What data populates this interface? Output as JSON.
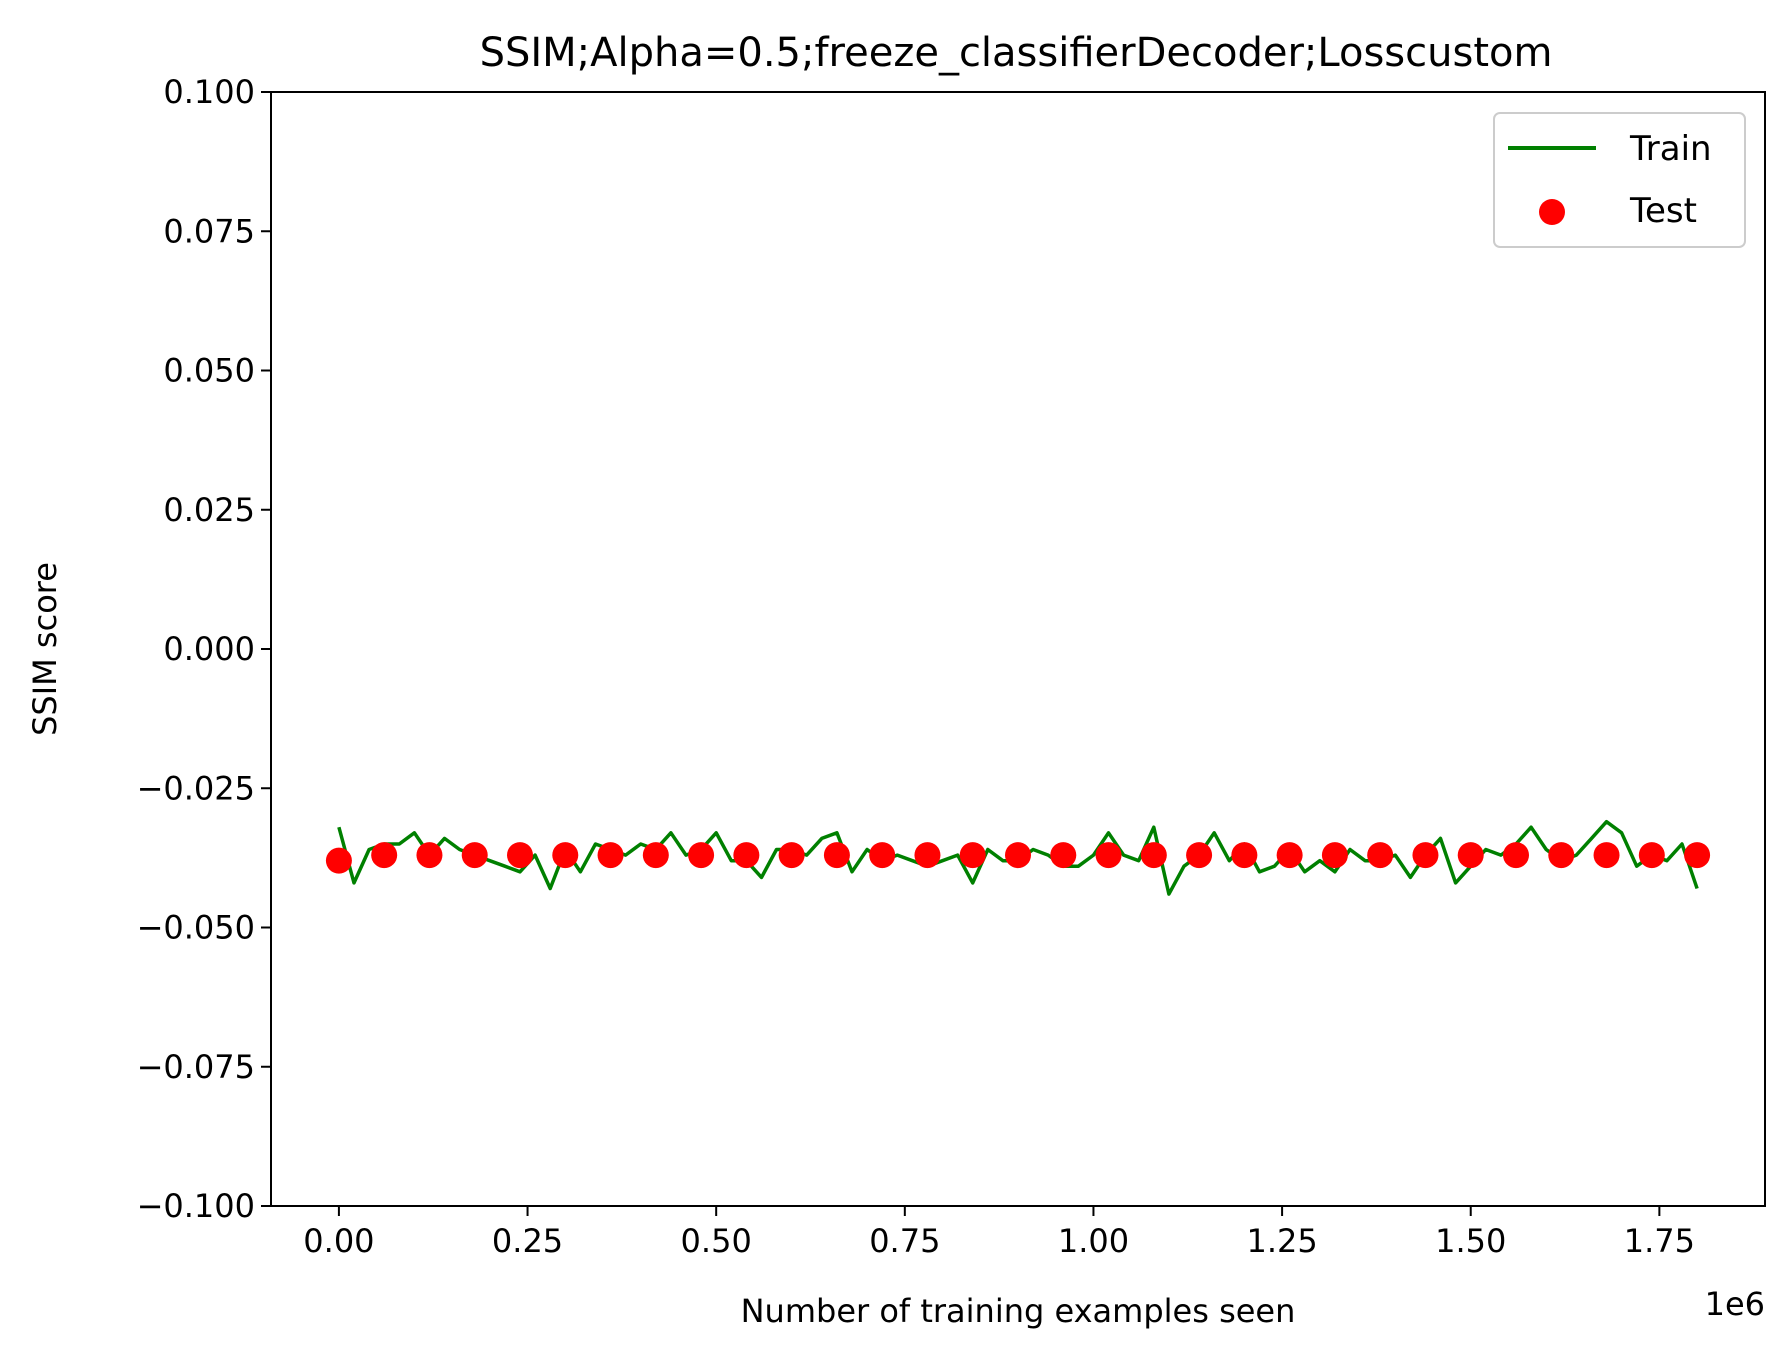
{
  "chart_data": {
    "type": "line",
    "title": "SSIM;Alpha=0.5;freeze_classifierDecoder;Losscustom",
    "xlabel": "Number of training examples seen",
    "ylabel": "SSIM score",
    "x_offset_text": "1e6",
    "xlim": [
      -90000,
      1890000
    ],
    "ylim": [
      -0.1,
      0.1
    ],
    "x_ticks": [
      0,
      250000,
      500000,
      750000,
      1000000,
      1250000,
      1500000,
      1750000
    ],
    "x_tick_labels": [
      "0.00",
      "0.25",
      "0.50",
      "0.75",
      "1.00",
      "1.25",
      "1.50",
      "1.75"
    ],
    "y_ticks": [
      -0.1,
      -0.075,
      -0.05,
      -0.025,
      0.0,
      0.025,
      0.05,
      0.075,
      0.1
    ],
    "y_tick_labels": [
      "−0.100",
      "−0.075",
      "−0.050",
      "−0.025",
      "0.000",
      "0.025",
      "0.050",
      "0.075",
      "0.100"
    ],
    "grid": false,
    "legend_position": "top-right",
    "series": [
      {
        "name": "Train",
        "kind": "line",
        "color": "#008000",
        "x": [
          0,
          20000,
          40000,
          60000,
          80000,
          100000,
          120000,
          140000,
          160000,
          180000,
          200000,
          220000,
          240000,
          260000,
          280000,
          300000,
          320000,
          340000,
          360000,
          380000,
          400000,
          420000,
          440000,
          460000,
          480000,
          500000,
          520000,
          540000,
          560000,
          580000,
          600000,
          620000,
          640000,
          660000,
          680000,
          700000,
          720000,
          740000,
          760000,
          780000,
          800000,
          820000,
          840000,
          860000,
          880000,
          900000,
          920000,
          940000,
          960000,
          980000,
          1000000,
          1020000,
          1040000,
          1060000,
          1080000,
          1100000,
          1120000,
          1140000,
          1160000,
          1180000,
          1200000,
          1220000,
          1240000,
          1260000,
          1280000,
          1300000,
          1320000,
          1340000,
          1360000,
          1380000,
          1400000,
          1420000,
          1440000,
          1460000,
          1480000,
          1500000,
          1520000,
          1540000,
          1560000,
          1580000,
          1600000,
          1620000,
          1640000,
          1660000,
          1680000,
          1700000,
          1720000,
          1740000,
          1760000,
          1780000,
          1800000
        ],
        "values": [
          -0.032,
          -0.042,
          -0.036,
          -0.035,
          -0.035,
          -0.033,
          -0.037,
          -0.034,
          -0.036,
          -0.037,
          -0.038,
          -0.039,
          -0.04,
          -0.037,
          -0.043,
          -0.036,
          -0.04,
          -0.035,
          -0.036,
          -0.037,
          -0.035,
          -0.036,
          -0.033,
          -0.037,
          -0.036,
          -0.033,
          -0.038,
          -0.038,
          -0.041,
          -0.036,
          -0.036,
          -0.037,
          -0.034,
          -0.033,
          -0.04,
          -0.036,
          -0.038,
          -0.037,
          -0.038,
          -0.039,
          -0.038,
          -0.037,
          -0.042,
          -0.036,
          -0.038,
          -0.038,
          -0.036,
          -0.037,
          -0.039,
          -0.039,
          -0.037,
          -0.033,
          -0.037,
          -0.038,
          -0.032,
          -0.044,
          -0.039,
          -0.037,
          -0.033,
          -0.038,
          -0.035,
          -0.04,
          -0.039,
          -0.036,
          -0.04,
          -0.038,
          -0.04,
          -0.036,
          -0.038,
          -0.038,
          -0.037,
          -0.041,
          -0.037,
          -0.034,
          -0.042,
          -0.039,
          -0.036,
          -0.037,
          -0.035,
          -0.032,
          -0.036,
          -0.038,
          -0.037,
          -0.034,
          -0.031,
          -0.033,
          -0.039,
          -0.037,
          -0.038,
          -0.035,
          -0.043
        ]
      },
      {
        "name": "Test",
        "kind": "scatter",
        "color": "#ff0000",
        "x": [
          0,
          60000,
          120000,
          180000,
          240000,
          300000,
          360000,
          420000,
          480000,
          540000,
          600000,
          660000,
          720000,
          780000,
          840000,
          900000,
          960000,
          1020000,
          1080000,
          1140000,
          1200000,
          1260000,
          1320000,
          1380000,
          1440000,
          1500000,
          1560000,
          1620000,
          1680000,
          1740000,
          1800000
        ],
        "values": [
          -0.038,
          -0.037,
          -0.037,
          -0.037,
          -0.037,
          -0.037,
          -0.037,
          -0.037,
          -0.037,
          -0.037,
          -0.037,
          -0.037,
          -0.037,
          -0.037,
          -0.037,
          -0.037,
          -0.037,
          -0.037,
          -0.037,
          -0.037,
          -0.037,
          -0.037,
          -0.037,
          -0.037,
          -0.037,
          -0.037,
          -0.037,
          -0.037,
          -0.037,
          -0.037,
          -0.037
        ]
      }
    ]
  }
}
